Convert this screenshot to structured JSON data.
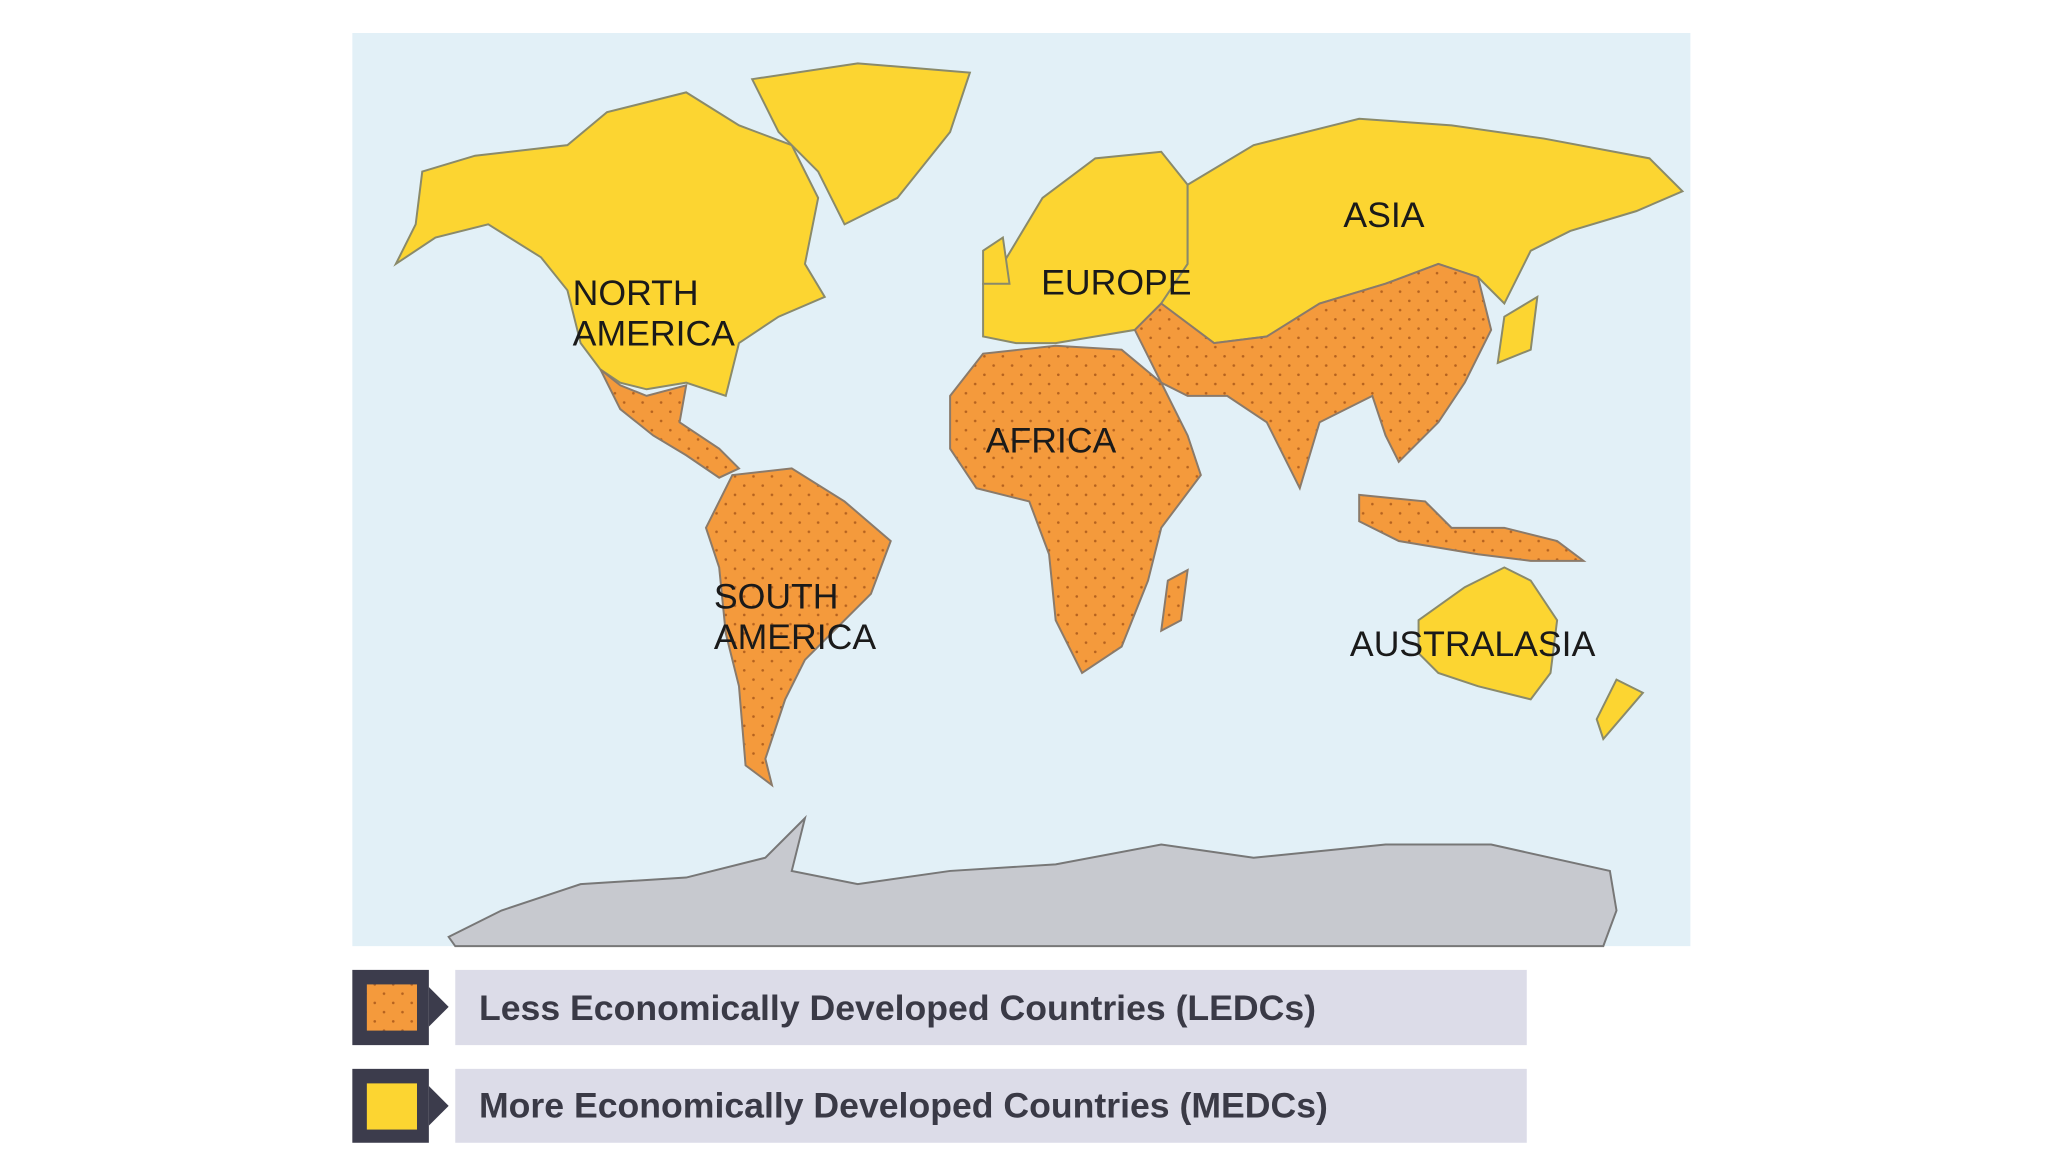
{
  "map": {
    "labels": [
      {
        "lines": [
          "NORTH",
          "AMERICA"
        ]
      },
      {
        "lines": [
          "EUROPE"
        ]
      },
      {
        "lines": [
          "ASIA"
        ]
      },
      {
        "lines": [
          "AFRICA"
        ]
      },
      {
        "lines": [
          "SOUTH",
          "AMERICA"
        ]
      },
      {
        "lines": [
          "AUSTRALASIA"
        ]
      }
    ]
  },
  "legend": {
    "items": [
      {
        "label": "Less Economically Developed Countries (LEDCs)"
      },
      {
        "label": "More Economically Developed Countries (MEDCs)"
      }
    ]
  }
}
